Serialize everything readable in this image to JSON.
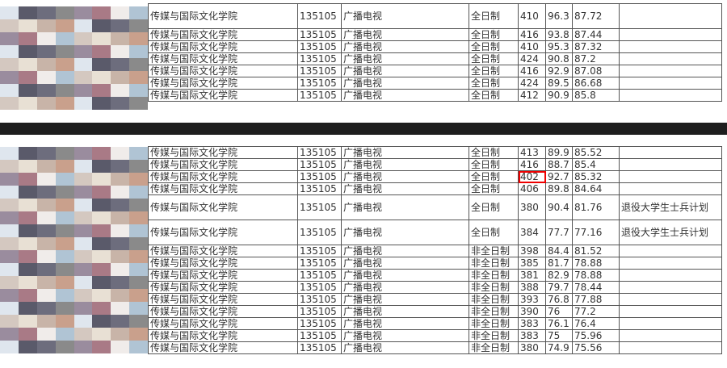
{
  "top_rows": [
    {
      "college": "传媒与国际文化学院",
      "code": "135105",
      "major": "广播电视",
      "type": "全日制",
      "score1": "410",
      "score2": "96.3",
      "total": "87.72",
      "remark": "",
      "tall": true
    },
    {
      "college": "传媒与国际文化学院",
      "code": "135105",
      "major": "广播电视",
      "type": "全日制",
      "score1": "416",
      "score2": "93.8",
      "total": "87.44",
      "remark": ""
    },
    {
      "college": "传媒与国际文化学院",
      "code": "135105",
      "major": "广播电视",
      "type": "全日制",
      "score1": "410",
      "score2": "95.3",
      "total": "87.32",
      "remark": ""
    },
    {
      "college": "传媒与国际文化学院",
      "code": "135105",
      "major": "广播电视",
      "type": "全日制",
      "score1": "424",
      "score2": "90.8",
      "total": "87.2",
      "remark": ""
    },
    {
      "college": "传媒与国际文化学院",
      "code": "135105",
      "major": "广播电视",
      "type": "全日制",
      "score1": "416",
      "score2": "92.9",
      "total": "87.08",
      "remark": ""
    },
    {
      "college": "传媒与国际文化学院",
      "code": "135105",
      "major": "广播电视",
      "type": "全日制",
      "score1": "424",
      "score2": "89.5",
      "total": "86.68",
      "remark": ""
    },
    {
      "college": "传媒与国际文化学院",
      "code": "135105",
      "major": "广播电视",
      "type": "全日制",
      "score1": "412",
      "score2": "90.9",
      "total": "85.8",
      "remark": ""
    }
  ],
  "bottom_rows": [
    {
      "college": "传媒与国际文化学院",
      "code": "135105",
      "major": "广播电视",
      "type": "全日制",
      "score1": "413",
      "score2": "89.9",
      "total": "85.52",
      "remark": ""
    },
    {
      "college": "传媒与国际文化学院",
      "code": "135105",
      "major": "广播电视",
      "type": "全日制",
      "score1": "416",
      "score2": "88.7",
      "total": "85.4",
      "remark": ""
    },
    {
      "college": "传媒与国际文化学院",
      "code": "135105",
      "major": "广播电视",
      "type": "全日制",
      "score1": "402",
      "score2": "92.7",
      "total": "85.32",
      "remark": "",
      "highlight": true
    },
    {
      "college": "传媒与国际文化学院",
      "code": "135105",
      "major": "广播电视",
      "type": "全日制",
      "score1": "406",
      "score2": "89.8",
      "total": "84.64",
      "remark": ""
    },
    {
      "college": "传媒与国际文化学院",
      "code": "135105",
      "major": "广播电视",
      "type": "全日制",
      "score1": "380",
      "score2": "90.4",
      "total": "81.76",
      "remark": "退役大学生士兵计划",
      "tall": true
    },
    {
      "college": "传媒与国际文化学院",
      "code": "135105",
      "major": "广播电视",
      "type": "全日制",
      "score1": "384",
      "score2": "77.7",
      "total": "77.16",
      "remark": "退役大学生士兵计划",
      "tall": true
    },
    {
      "college": "传媒与国际文化学院",
      "code": "135105",
      "major": "广播电视",
      "type": "非全日制",
      "score1": "398",
      "score2": "84.4",
      "total": "81.52",
      "remark": ""
    },
    {
      "college": "传媒与国际文化学院",
      "code": "135105",
      "major": "广播电视",
      "type": "非全日制",
      "score1": "385",
      "score2": "81.7",
      "total": "78.88",
      "remark": ""
    },
    {
      "college": "传媒与国际文化学院",
      "code": "135105",
      "major": "广播电视",
      "type": "非全日制",
      "score1": "381",
      "score2": "82.9",
      "total": "78.88",
      "remark": ""
    },
    {
      "college": "传媒与国际文化学院",
      "code": "135105",
      "major": "广播电视",
      "type": "非全日制",
      "score1": "388",
      "score2": "79.7",
      "total": "78.44",
      "remark": ""
    },
    {
      "college": "传媒与国际文化学院",
      "code": "135105",
      "major": "广播电视",
      "type": "非全日制",
      "score1": "393",
      "score2": "76.8",
      "total": "77.88",
      "remark": ""
    },
    {
      "college": "传媒与国际文化学院",
      "code": "135105",
      "major": "广播电视",
      "type": "非全日制",
      "score1": "390",
      "score2": "76",
      "total": "77.2",
      "remark": ""
    },
    {
      "college": "传媒与国际文化学院",
      "code": "135105",
      "major": "广播电视",
      "type": "非全日制",
      "score1": "383",
      "score2": "76.1",
      "total": "76.4",
      "remark": ""
    },
    {
      "college": "传媒与国际文化学院",
      "code": "135105",
      "major": "广播电视",
      "type": "非全日制",
      "score1": "383",
      "score2": "75",
      "total": "75.96",
      "remark": ""
    },
    {
      "college": "传媒与国际文化学院",
      "code": "135105",
      "major": "广播电视",
      "type": "非全日制",
      "score1": "380",
      "score2": "74.9",
      "total": "75.56",
      "remark": ""
    }
  ],
  "highlight_color": "#e00000"
}
